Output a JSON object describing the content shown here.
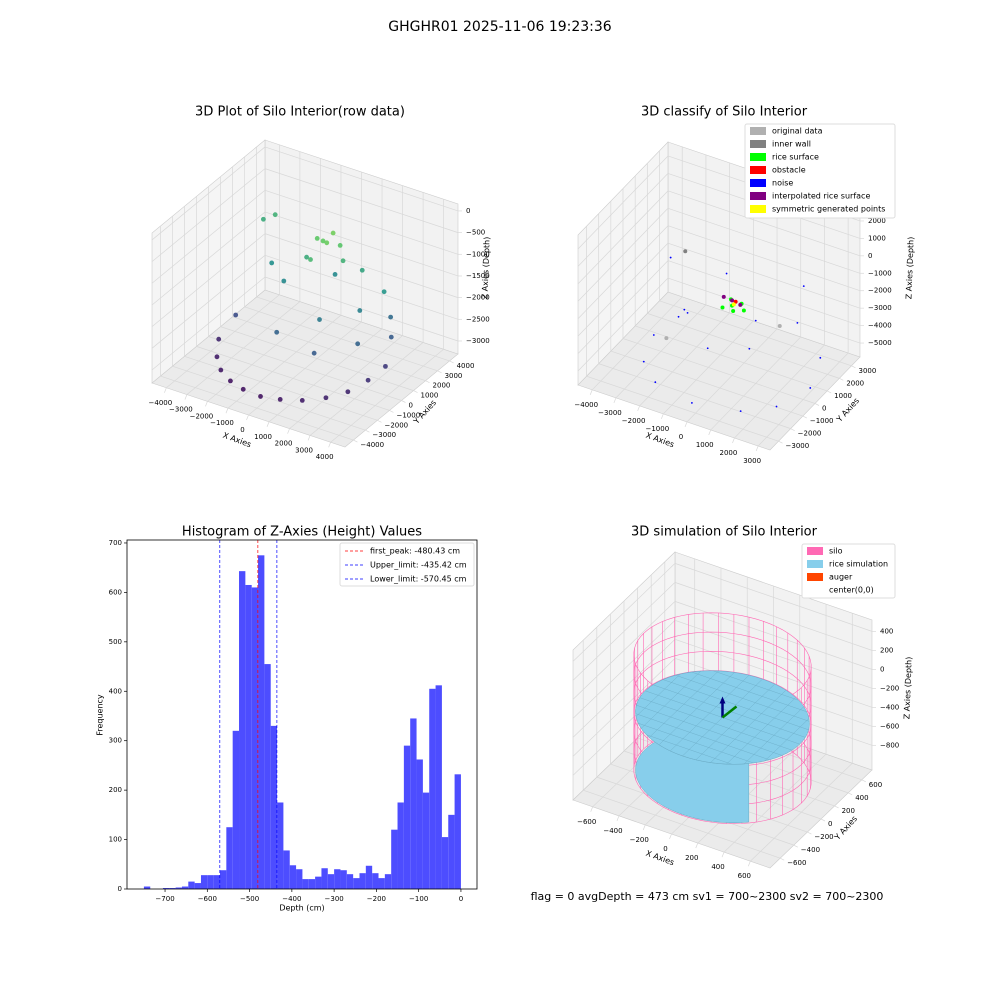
{
  "figure": {
    "title": "GHGHR01 2025-11-06 19:23:36",
    "footer": "flag = 0     avgDepth = 473 cm  sv1 = 700~2300  sv2 = 700~2300"
  },
  "chart_data": [
    {
      "type": "scatter3d",
      "title": "3D Plot of Silo Interior(row data)",
      "xlabel": "X Axies",
      "ylabel": "Y Axies",
      "zlabel": "Z Axies (Depth)",
      "colormap": "viridis",
      "xlim": [
        -4700,
        4700
      ],
      "ylim": [
        -4700,
        4700
      ],
      "zlim": [
        -3300,
        160
      ],
      "xticks": [
        {
          "value": -4000,
          "label": "−4000"
        },
        {
          "value": -3000,
          "label": "−3000"
        },
        {
          "value": -2000,
          "label": "−2000"
        },
        {
          "value": -1000,
          "label": "−1000"
        },
        0,
        1000,
        2000,
        3000,
        4000
      ],
      "yticks": [
        {
          "value": -4000,
          "label": "−4000"
        },
        {
          "value": -3000,
          "label": "−3000"
        },
        {
          "value": -2000,
          "label": "−2000"
        },
        {
          "value": -1000,
          "label": "−1000"
        },
        0,
        1000,
        2000,
        3000,
        4000
      ],
      "zticks": [
        0,
        {
          "value": -500,
          "label": "−500"
        },
        {
          "value": -1000,
          "label": "−1000"
        },
        {
          "value": -1500,
          "label": "−1500"
        },
        {
          "value": -2000,
          "label": "−2000"
        },
        {
          "value": -2500,
          "label": "−2500"
        },
        {
          "value": -3000,
          "label": "−3000"
        }
      ],
      "points": [
        [
          -3500,
          -1200,
          -2900
        ],
        [
          -3000,
          -2200,
          -3000
        ],
        [
          -2400,
          -2900,
          -3050
        ],
        [
          -1700,
          -3300,
          -3100
        ],
        [
          -900,
          -3600,
          -3100
        ],
        [
          0,
          -3700,
          -3100
        ],
        [
          900,
          -3600,
          -3050
        ],
        [
          1800,
          -3300,
          -3000
        ],
        [
          2600,
          -2700,
          -2950
        ],
        [
          3200,
          -1900,
          -2900
        ],
        [
          3600,
          -900,
          -2800
        ],
        [
          3800,
          200,
          -2700
        ],
        [
          -3200,
          -300,
          -2500
        ],
        [
          3500,
          1200,
          -2300
        ],
        [
          2800,
          -400,
          -2200
        ],
        [
          1500,
          -1800,
          -2300
        ],
        [
          -500,
          -1500,
          -2200
        ],
        [
          3000,
          2000,
          -2100
        ],
        [
          -1500,
          800,
          -1700
        ],
        [
          -2500,
          1500,
          -1600
        ],
        [
          1000,
          -500,
          -1900
        ],
        [
          2200,
          800,
          -1800
        ],
        [
          2800,
          1800,
          -1500
        ],
        [
          0,
          2500,
          -1700
        ],
        [
          -3900,
          3200,
          -1200
        ],
        [
          -3500,
          3500,
          -1100
        ],
        [
          -800,
          1500,
          -1200
        ],
        [
          800,
          1800,
          -1100
        ],
        [
          1500,
          2200,
          -1300
        ],
        [
          -200,
          800,
          -1000
        ],
        [
          0,
          1500,
          -700
        ],
        [
          300,
          1300,
          -650
        ],
        [
          -400,
          1700,
          -750
        ],
        [
          600,
          1900,
          -800
        ],
        [
          200,
          2000,
          -600
        ]
      ]
    },
    {
      "type": "scatter3d",
      "title": "3D classify of Silo Interior",
      "xlabel": "X Axies",
      "ylabel": "Y Axies",
      "zlabel": "Z Axies (Depth)",
      "xlim": [
        -4600,
        3500
      ],
      "ylim": [
        -3700,
        3700
      ],
      "zlim": [
        -5800,
        2800
      ],
      "xticks": [
        {
          "value": -4000,
          "label": "−4000"
        },
        {
          "value": -3000,
          "label": "−3000"
        },
        {
          "value": -2000,
          "label": "−2000"
        },
        {
          "value": -1000,
          "label": "−1000"
        },
        0,
        1000,
        2000,
        3000
      ],
      "yticks": [
        {
          "value": -3000,
          "label": "−3000"
        },
        {
          "value": -2000,
          "label": "−2000"
        },
        {
          "value": -1000,
          "label": "−1000"
        },
        0,
        1000,
        2000,
        3000
      ],
      "zticks": [
        2000,
        1000,
        0,
        {
          "value": -1000,
          "label": "−1000"
        },
        {
          "value": -2000,
          "label": "−2000"
        },
        {
          "value": -3000,
          "label": "−3000"
        },
        {
          "value": -4000,
          "label": "−4000"
        },
        {
          "value": -5000,
          "label": "−5000"
        }
      ],
      "series": [
        {
          "name": "original data",
          "color": "#b0b0b0",
          "points": [
            [
              -2000,
              -1500,
              -3500
            ],
            [
              1500,
              1000,
              -3000
            ]
          ]
        },
        {
          "name": "inner wall",
          "color": "#808080",
          "points": [
            [
              -3000,
              2000,
              -1500
            ]
          ]
        },
        {
          "name": "rice surface",
          "color": "#00ff00",
          "points": [
            [
              0,
              0,
              -1800
            ],
            [
              300,
              200,
              -1700
            ],
            [
              -300,
              -200,
              -1900
            ],
            [
              200,
              -300,
              -1800
            ],
            [
              -200,
              300,
              -1750
            ],
            [
              500,
              0,
              -1850
            ]
          ]
        },
        {
          "name": "obstacle",
          "color": "#ff0000",
          "points": [
            [
              100,
              100,
              -1600
            ]
          ]
        },
        {
          "name": "noise",
          "color": "#0000ff",
          "points": [
            [
              -3300,
              0,
              -5000
            ],
            [
              -2800,
              -1800,
              -5000
            ],
            [
              -1800,
              -2800,
              -5000
            ],
            [
              0,
              -3300,
              -5000
            ],
            [
              1800,
              -2800,
              -5000
            ],
            [
              2800,
              -1800,
              -5000
            ],
            [
              3300,
              0,
              -5000
            ],
            [
              2800,
              1800,
              -4800
            ],
            [
              -2800,
              1800,
              -4800
            ],
            [
              -2000,
              -500,
              -3000
            ],
            [
              1500,
              -1500,
              -2500
            ],
            [
              2500,
              500,
              -2000
            ],
            [
              -1000,
              1500,
              -1500
            ],
            [
              -3000,
              800,
              -1000
            ],
            [
              2000,
              2000,
              -1200
            ],
            [
              0,
              -2000,
              -2800
            ],
            [
              1000,
              0,
              -2200
            ],
            [
              -1500,
              -1000,
              -2000
            ]
          ]
        },
        {
          "name": "interpolated rice surface",
          "color": "#800080",
          "points": [
            [
              0,
              0,
              -1500
            ],
            [
              -400,
              100,
              -1550
            ],
            [
              400,
              -100,
              -1500
            ]
          ]
        },
        {
          "name": "symmetric generated points",
          "color": "#ffff00",
          "points": [
            [
              100,
              -50,
              -1650
            ]
          ]
        }
      ]
    },
    {
      "type": "histogram",
      "title": "Histogram of Z-Axies (Height) Values",
      "xlabel": "Depth (cm)",
      "ylabel": "Frequency",
      "color": "#4d4dff",
      "xlim": [
        -790,
        38
      ],
      "ylim": [
        0,
        706
      ],
      "xticks": [
        {
          "value": -700,
          "label": "−700"
        },
        {
          "value": -600,
          "label": "−600"
        },
        {
          "value": -500,
          "label": "−500"
        },
        {
          "value": -400,
          "label": "−400"
        },
        {
          "value": -300,
          "label": "−300"
        },
        {
          "value": -200,
          "label": "−200"
        },
        {
          "value": -100,
          "label": "−100"
        },
        0
      ],
      "yticks": [
        0,
        100,
        200,
        300,
        400,
        500,
        600,
        700
      ],
      "bins": [
        -750,
        -735,
        -720,
        -705,
        -690,
        -675,
        -660,
        -645,
        -630,
        -615,
        -600,
        -585,
        -570,
        -555,
        -540,
        -525,
        -510,
        -495,
        -480,
        -465,
        -450,
        -435,
        -420,
        -405,
        -390,
        -375,
        -360,
        -345,
        -330,
        -315,
        -300,
        -285,
        -270,
        -255,
        -240,
        -225,
        -210,
        -195,
        -180,
        -165,
        -150,
        -135,
        -120,
        -105,
        -90,
        -75,
        -60,
        -45,
        -30,
        -15,
        0
      ],
      "counts": [
        5,
        0,
        0,
        2,
        2,
        3,
        5,
        15,
        12,
        28,
        28,
        28,
        38,
        125,
        320,
        643,
        615,
        610,
        675,
        455,
        330,
        175,
        78,
        48,
        40,
        20,
        20,
        25,
        42,
        30,
        40,
        38,
        30,
        22,
        32,
        47,
        32,
        22,
        30,
        120,
        175,
        290,
        345,
        262,
        195,
        405,
        412,
        105,
        150,
        232
      ],
      "vlines": [
        {
          "label": "first_peak: -480.43 cm",
          "value": -480.43,
          "color": "#ff0000"
        },
        {
          "label": "Upper_limit: -435.42 cm",
          "value": -435.42,
          "color": "#0000ff"
        },
        {
          "label": "Lower_limit: -570.45 cm",
          "value": -570.45,
          "color": "#0000ff"
        }
      ]
    },
    {
      "type": "surface3d",
      "title": "3D simulation of Silo Interior",
      "xlabel": "X Axies",
      "ylabel": "Y Axies",
      "zlabel": "Z Axies (Depth)",
      "xlim": [
        -750,
        750
      ],
      "ylim": [
        -750,
        750
      ],
      "zlim": [
        -1060,
        520
      ],
      "xticks": [
        {
          "value": -600,
          "label": "−600"
        },
        {
          "value": -400,
          "label": "−400"
        },
        {
          "value": -200,
          "label": "−200"
        },
        0,
        200,
        400,
        600
      ],
      "yticks": [
        {
          "value": -600,
          "label": "−600"
        },
        {
          "value": -400,
          "label": "−400"
        },
        {
          "value": -200,
          "label": "−200"
        },
        0,
        200,
        400,
        600
      ],
      "zticks": [
        400,
        200,
        0,
        {
          "value": -200,
          "label": "−200"
        },
        {
          "value": -400,
          "label": "−400"
        },
        {
          "value": -600,
          "label": "−600"
        },
        {
          "value": -800,
          "label": "−800"
        }
      ],
      "series": [
        {
          "name": "silo",
          "color": "#ff69b4"
        },
        {
          "name": "rice simulation",
          "color": "#87ceeb"
        },
        {
          "name": "auger",
          "color": "#ff4500"
        },
        {
          "name": "center(0,0)",
          "color": "#ffffff"
        }
      ]
    }
  ]
}
